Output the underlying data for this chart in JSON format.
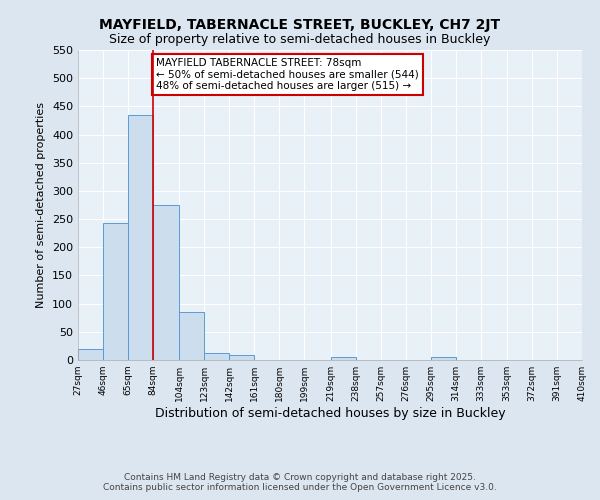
{
  "title1": "MAYFIELD, TABERNACLE STREET, BUCKLEY, CH7 2JT",
  "title2": "Size of property relative to semi-detached houses in Buckley",
  "xlabel": "Distribution of semi-detached houses by size in Buckley",
  "ylabel": "Number of semi-detached properties",
  "annotation_title": "MAYFIELD TABERNACLE STREET: 78sqm",
  "annotation_line1": "← 50% of semi-detached houses are smaller (544)",
  "annotation_line2": "48% of semi-detached houses are larger (515) →",
  "property_line_bin": 84,
  "bar_edges": [
    27,
    46,
    65,
    84,
    104,
    123,
    142,
    161,
    180,
    199,
    219,
    238,
    257,
    276,
    295,
    314,
    333,
    353,
    372,
    391,
    410
  ],
  "bar_heights": [
    20,
    243,
    435,
    275,
    85,
    13,
    8,
    0,
    0,
    0,
    5,
    0,
    0,
    0,
    5,
    0,
    0,
    0,
    0,
    0
  ],
  "bar_color": "#ccdded",
  "bar_edge_color": "#5b9bd5",
  "red_line_color": "#cc0000",
  "annotation_box_color": "#cc0000",
  "background_color": "#dce6f1",
  "plot_bg_color": "#e8f0f8",
  "grid_color": "#ffffff",
  "ylim": [
    0,
    550
  ],
  "yticks": [
    0,
    50,
    100,
    150,
    200,
    250,
    300,
    350,
    400,
    450,
    500,
    550
  ],
  "footer1": "Contains HM Land Registry data © Crown copyright and database right 2025.",
  "footer2": "Contains public sector information licensed under the Open Government Licence v3.0."
}
